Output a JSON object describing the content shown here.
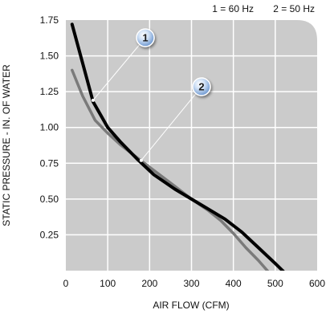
{
  "chart_data": {
    "type": "line",
    "title": "",
    "xlabel": "AIR FLOW (CFM)",
    "ylabel": "STATIC PRESSURE - IN. OF WATER",
    "xlim": [
      0,
      600
    ],
    "ylim": [
      0,
      1.75
    ],
    "x_ticks": [
      "0",
      "100",
      "200",
      "300",
      "400",
      "500",
      "600"
    ],
    "y_ticks": [
      "0.25",
      "0.50",
      "0.75",
      "1.00",
      "1.25",
      "1.50",
      "1.75"
    ],
    "grid": true,
    "legend": {
      "placement": "top-right",
      "entries": [
        {
          "key": "1",
          "text": "1 = 60 Hz"
        },
        {
          "key": "2",
          "text": "2 = 50 Hz"
        }
      ]
    },
    "series": [
      {
        "name": "1",
        "color": "#000000",
        "x": [
          15,
          40,
          65,
          100,
          130,
          170,
          210,
          260,
          300,
          340,
          380,
          420,
          460,
          500,
          535
        ],
        "y": [
          1.72,
          1.45,
          1.18,
          1.0,
          0.9,
          0.78,
          0.67,
          0.57,
          0.5,
          0.43,
          0.36,
          0.27,
          0.16,
          0.05,
          -0.05
        ]
      },
      {
        "name": "2",
        "color": "#7a7a7a",
        "x": [
          15,
          40,
          70,
          100,
          130,
          170,
          210,
          260,
          300,
          340,
          370,
          400,
          430,
          460,
          490
        ],
        "y": [
          1.4,
          1.22,
          1.05,
          0.96,
          0.88,
          0.79,
          0.7,
          0.59,
          0.5,
          0.42,
          0.35,
          0.26,
          0.16,
          0.07,
          -0.03
        ]
      }
    ],
    "annotations": [
      {
        "label": "1",
        "target_x": 65,
        "target_y": 1.19
      },
      {
        "label": "2",
        "target_x": 180,
        "target_y": 0.77
      }
    ]
  }
}
